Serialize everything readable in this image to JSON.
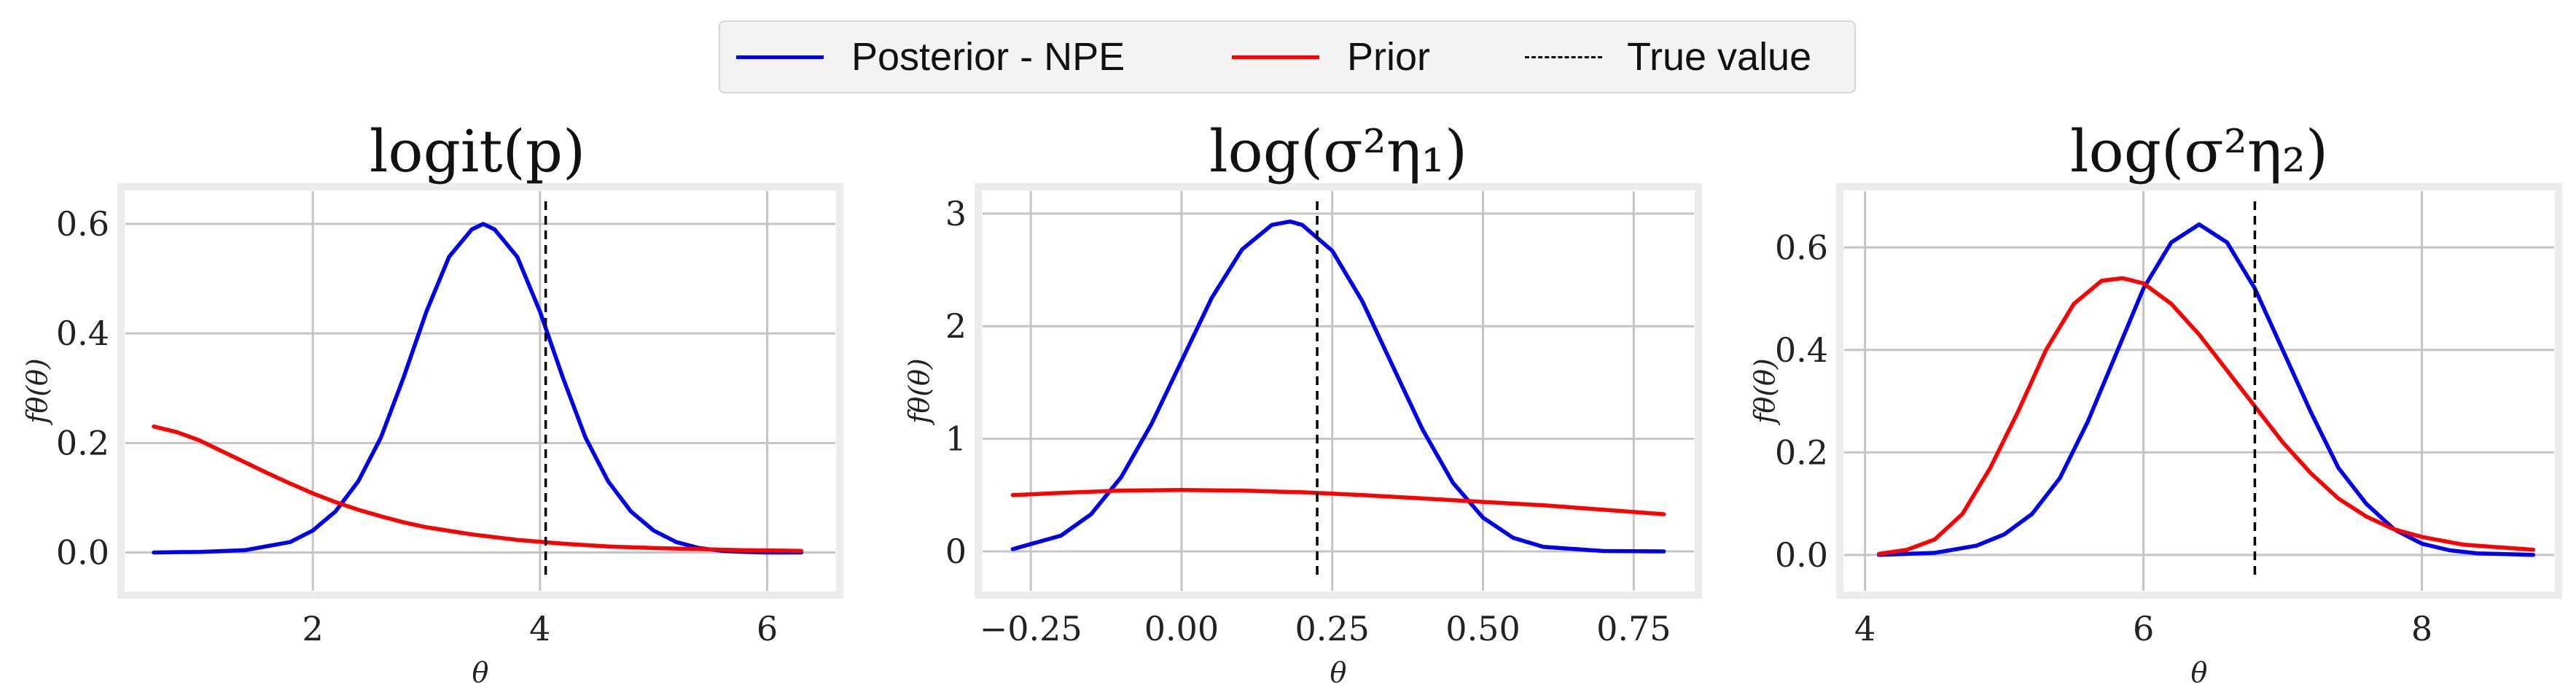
{
  "legend": {
    "items": [
      {
        "label": "Posterior - NPE",
        "color": "#0000ee",
        "style": "solid"
      },
      {
        "label": "Prior",
        "color": "#ff0000",
        "style": "solid"
      },
      {
        "label": "True value",
        "color": "#000000",
        "style": "dashed"
      }
    ]
  },
  "chart_data": [
    {
      "type": "line",
      "title": "logit(p)",
      "xlabel": "θ",
      "ylabel": "fθ(θ)",
      "xlim": [
        0.35,
        6.6
      ],
      "ylim": [
        -0.07,
        0.66
      ],
      "xticks": [
        2,
        4,
        6
      ],
      "yticks": [
        0.0,
        0.2,
        0.4,
        0.6
      ],
      "xtick_labels": [
        "2",
        "4",
        "6"
      ],
      "ytick_labels": [
        "0.0",
        "0.2",
        "0.4",
        "0.6"
      ],
      "true_value": 4.05,
      "series": [
        {
          "name": "Posterior - NPE",
          "color": "#0000ee",
          "x": [
            0.6,
            1.0,
            1.4,
            1.8,
            2.0,
            2.2,
            2.4,
            2.6,
            2.8,
            3.0,
            3.2,
            3.4,
            3.5,
            3.6,
            3.8,
            4.0,
            4.2,
            4.4,
            4.6,
            4.8,
            5.0,
            5.2,
            5.4,
            5.6,
            5.8,
            6.0,
            6.3
          ],
          "y": [
            0.0,
            0.001,
            0.004,
            0.019,
            0.04,
            0.075,
            0.13,
            0.21,
            0.32,
            0.44,
            0.54,
            0.59,
            0.6,
            0.59,
            0.54,
            0.44,
            0.32,
            0.21,
            0.13,
            0.075,
            0.04,
            0.019,
            0.008,
            0.003,
            0.001,
            0.0,
            0.0
          ]
        },
        {
          "name": "Prior",
          "color": "#ff0000",
          "x": [
            0.6,
            0.8,
            1.0,
            1.2,
            1.4,
            1.6,
            1.8,
            2.0,
            2.2,
            2.4,
            2.6,
            2.8,
            3.0,
            3.4,
            3.8,
            4.2,
            4.6,
            5.0,
            5.4,
            5.8,
            6.3
          ],
          "y": [
            0.23,
            0.22,
            0.205,
            0.185,
            0.165,
            0.145,
            0.126,
            0.108,
            0.092,
            0.078,
            0.066,
            0.055,
            0.046,
            0.033,
            0.023,
            0.016,
            0.011,
            0.008,
            0.006,
            0.004,
            0.003
          ]
        }
      ]
    },
    {
      "type": "line",
      "title": "log(σ²η₁)",
      "xlabel": "θ",
      "ylabel": "fθ(θ)",
      "xlim": [
        -0.33,
        0.85
      ],
      "ylim": [
        -0.35,
        3.2
      ],
      "xticks": [
        -0.25,
        0.0,
        0.25,
        0.5,
        0.75
      ],
      "yticks": [
        0,
        1,
        2,
        3
      ],
      "xtick_labels": [
        "−0.25",
        "0.00",
        "0.25",
        "0.50",
        "0.75"
      ],
      "ytick_labels": [
        "0",
        "1",
        "2",
        "3"
      ],
      "true_value": 0.225,
      "series": [
        {
          "name": "Posterior - NPE",
          "color": "#0000ee",
          "x": [
            -0.28,
            -0.2,
            -0.15,
            -0.1,
            -0.05,
            0.0,
            0.05,
            0.1,
            0.15,
            0.18,
            0.2,
            0.25,
            0.3,
            0.35,
            0.4,
            0.45,
            0.5,
            0.55,
            0.6,
            0.7,
            0.8
          ],
          "y": [
            0.02,
            0.14,
            0.33,
            0.66,
            1.13,
            1.69,
            2.25,
            2.68,
            2.9,
            2.93,
            2.9,
            2.67,
            2.22,
            1.65,
            1.08,
            0.61,
            0.3,
            0.12,
            0.04,
            0.003,
            0.0
          ]
        },
        {
          "name": "Prior",
          "color": "#ff0000",
          "x": [
            -0.28,
            -0.2,
            -0.1,
            0.0,
            0.1,
            0.2,
            0.3,
            0.4,
            0.5,
            0.6,
            0.7,
            0.8
          ],
          "y": [
            0.5,
            0.52,
            0.54,
            0.545,
            0.54,
            0.525,
            0.5,
            0.47,
            0.44,
            0.41,
            0.37,
            0.33
          ]
        }
      ]
    },
    {
      "type": "line",
      "title": "log(σ²η₂)",
      "xlabel": "θ",
      "ylabel": "fθ(θ)",
      "xlim": [
        3.85,
        8.95
      ],
      "ylim": [
        -0.07,
        0.71
      ],
      "xticks": [
        4,
        6,
        8
      ],
      "yticks": [
        0.0,
        0.2,
        0.4,
        0.6
      ],
      "xtick_labels": [
        "4",
        "6",
        "8"
      ],
      "ytick_labels": [
        "0.0",
        "0.2",
        "0.4",
        "0.6"
      ],
      "true_value": 6.8,
      "series": [
        {
          "name": "Posterior - NPE",
          "color": "#0000ee",
          "x": [
            4.1,
            4.5,
            4.8,
            5.0,
            5.2,
            5.4,
            5.6,
            5.8,
            6.0,
            6.2,
            6.4,
            6.6,
            6.8,
            7.0,
            7.2,
            7.4,
            7.6,
            7.8,
            8.0,
            8.2,
            8.4,
            8.8
          ],
          "y": [
            0.0,
            0.004,
            0.018,
            0.04,
            0.08,
            0.15,
            0.26,
            0.39,
            0.52,
            0.61,
            0.645,
            0.61,
            0.52,
            0.4,
            0.28,
            0.17,
            0.1,
            0.05,
            0.022,
            0.009,
            0.003,
            0.0
          ]
        },
        {
          "name": "Prior",
          "color": "#ff0000",
          "x": [
            4.1,
            4.3,
            4.5,
            4.7,
            4.9,
            5.1,
            5.3,
            5.5,
            5.7,
            5.85,
            6.0,
            6.2,
            6.4,
            6.6,
            6.8,
            7.0,
            7.2,
            7.4,
            7.6,
            7.8,
            8.0,
            8.3,
            8.8
          ],
          "y": [
            0.002,
            0.01,
            0.03,
            0.08,
            0.17,
            0.28,
            0.4,
            0.49,
            0.535,
            0.54,
            0.53,
            0.49,
            0.43,
            0.36,
            0.29,
            0.22,
            0.16,
            0.11,
            0.075,
            0.05,
            0.035,
            0.02,
            0.01
          ]
        }
      ]
    }
  ]
}
